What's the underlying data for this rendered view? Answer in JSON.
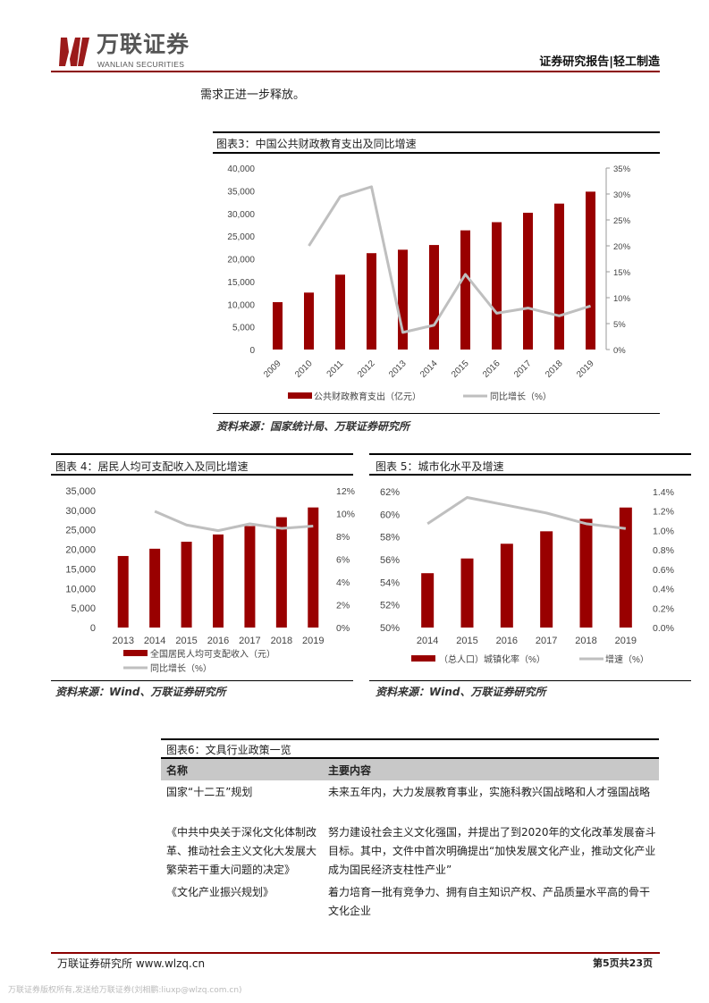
{
  "header": {
    "logo_cn": "万联证券",
    "logo_en": "WANLIAN SECURITIES",
    "report_type": "证券研究报告|轻工制造",
    "brand_color": "#9b1b1b"
  },
  "body_text": "需求正进一步释放。",
  "colors": {
    "bar": "#990000",
    "line": "#bfbfbf"
  },
  "charts": {
    "fig3": {
      "title": "图表3：中国公共财政教育支出及同比增速",
      "source": "资料来源：国家统计局、万联证券研究所"
    },
    "fig4": {
      "title": "图表 4：居民人均可支配收入及同比增速",
      "source": "资料来源：Wind、万联证券研究所"
    },
    "fig5": {
      "title": "图表 5：城市化水平及增速",
      "source": "资料来源：Wind、万联证券研究所"
    }
  },
  "chart_data": [
    {
      "type": "bar+line",
      "title": "图表3：中国公共财政教育支出及同比增速",
      "categories": [
        "2009",
        "2010",
        "2011",
        "2012",
        "2013",
        "2014",
        "2015",
        "2016",
        "2017",
        "2018",
        "2019"
      ],
      "series": [
        {
          "name": "公共财政教育支出（亿元）",
          "type": "bar",
          "axis": "left",
          "values": [
            10440,
            12550,
            16500,
            21240,
            22000,
            23040,
            26270,
            28070,
            30150,
            32170,
            34800
          ]
        },
        {
          "name": "同比增长（%）",
          "type": "line",
          "axis": "right",
          "values": [
            null,
            20.0,
            29.5,
            31.4,
            3.3,
            4.7,
            14.5,
            7.0,
            8.0,
            6.5,
            8.4
          ]
        }
      ],
      "left_axis": {
        "min": 0,
        "max": 40000,
        "ticks": [
          "0",
          "5,000",
          "10,000",
          "15,000",
          "20,000",
          "25,000",
          "30,000",
          "35,000",
          "40,000"
        ]
      },
      "right_axis": {
        "min": 0,
        "max": 35,
        "ticks": [
          "0%",
          "5%",
          "10%",
          "15%",
          "20%",
          "25%",
          "30%",
          "35%"
        ]
      },
      "grid": false,
      "legend": "bottom"
    },
    {
      "type": "bar+line",
      "title": "图表 4：居民人均可支配收入及同比增速",
      "categories": [
        "2013",
        "2014",
        "2015",
        "2016",
        "2017",
        "2018",
        "2019"
      ],
      "series": [
        {
          "name": "全国居民人均可支配收入（元）",
          "type": "bar",
          "axis": "left",
          "values": [
            18311,
            20167,
            21966,
            23821,
            25974,
            28228,
            30733
          ]
        },
        {
          "name": "同比增长（%）",
          "type": "line",
          "axis": "right",
          "values": [
            null,
            10.2,
            9.0,
            8.5,
            9.1,
            8.7,
            8.9
          ]
        }
      ],
      "left_axis": {
        "min": 0,
        "max": 35000,
        "ticks": [
          "0",
          "5,000",
          "10,000",
          "15,000",
          "20,000",
          "25,000",
          "30,000",
          "35,000"
        ]
      },
      "right_axis": {
        "min": 0,
        "max": 12,
        "ticks": [
          "0%",
          "2%",
          "4%",
          "6%",
          "8%",
          "10%",
          "12%"
        ]
      },
      "grid": false,
      "legend": "bottom"
    },
    {
      "type": "bar+line",
      "title": "图表 5：城市化水平及增速",
      "categories": [
        "2014",
        "2015",
        "2016",
        "2017",
        "2018",
        "2019"
      ],
      "series": [
        {
          "name": "（总人口）城镇化率（%）",
          "type": "bar",
          "axis": "left",
          "values": [
            54.8,
            56.1,
            57.4,
            58.5,
            59.6,
            60.6
          ]
        },
        {
          "name": "增速（%）",
          "type": "line",
          "axis": "right",
          "values": [
            1.07,
            1.34,
            1.26,
            1.18,
            1.07,
            1.02
          ]
        }
      ],
      "left_axis": {
        "min": 50,
        "max": 62,
        "ticks": [
          "50%",
          "52%",
          "54%",
          "56%",
          "58%",
          "60%",
          "62%"
        ]
      },
      "right_axis": {
        "min": 0,
        "max": 1.4,
        "ticks": [
          "0.0%",
          "0.2%",
          "0.4%",
          "0.6%",
          "0.8%",
          "1.0%",
          "1.2%",
          "1.4%"
        ]
      },
      "grid": false,
      "legend": "bottom"
    }
  ],
  "table": {
    "title": "图表6：文具行业政策一览",
    "headers": [
      "名称",
      "主要内容"
    ],
    "rows": [
      {
        "name": "国家“十二五”规划",
        "content": "未来五年内，大力发展教育事业，实施科教兴国战略和人才强国战略"
      },
      {
        "name": "《中共中央关于深化文化体制改革、推动社会主义文化大发展大繁荣若干重大问题的决定》",
        "content": "努力建设社会主义文化强国，并提出了到2020年的文化改革发展奋斗目标。其中，文件中首次明确提出“加快发展文化产业，推动文化产业成为国民经济支柱性产业”"
      },
      {
        "name": "《文化产业振兴规划》",
        "content": "着力培育一批有竞争力、拥有自主知识产权、产品质量水平高的骨干文化企业"
      }
    ]
  },
  "footer": {
    "left": "万联证券研究所 www.wlzq.cn",
    "page": "第5页共23页",
    "watermark": "万联证券版权所有,发送给万联证券(刘相鹏:liuxp@wlzq.com.cn)"
  }
}
